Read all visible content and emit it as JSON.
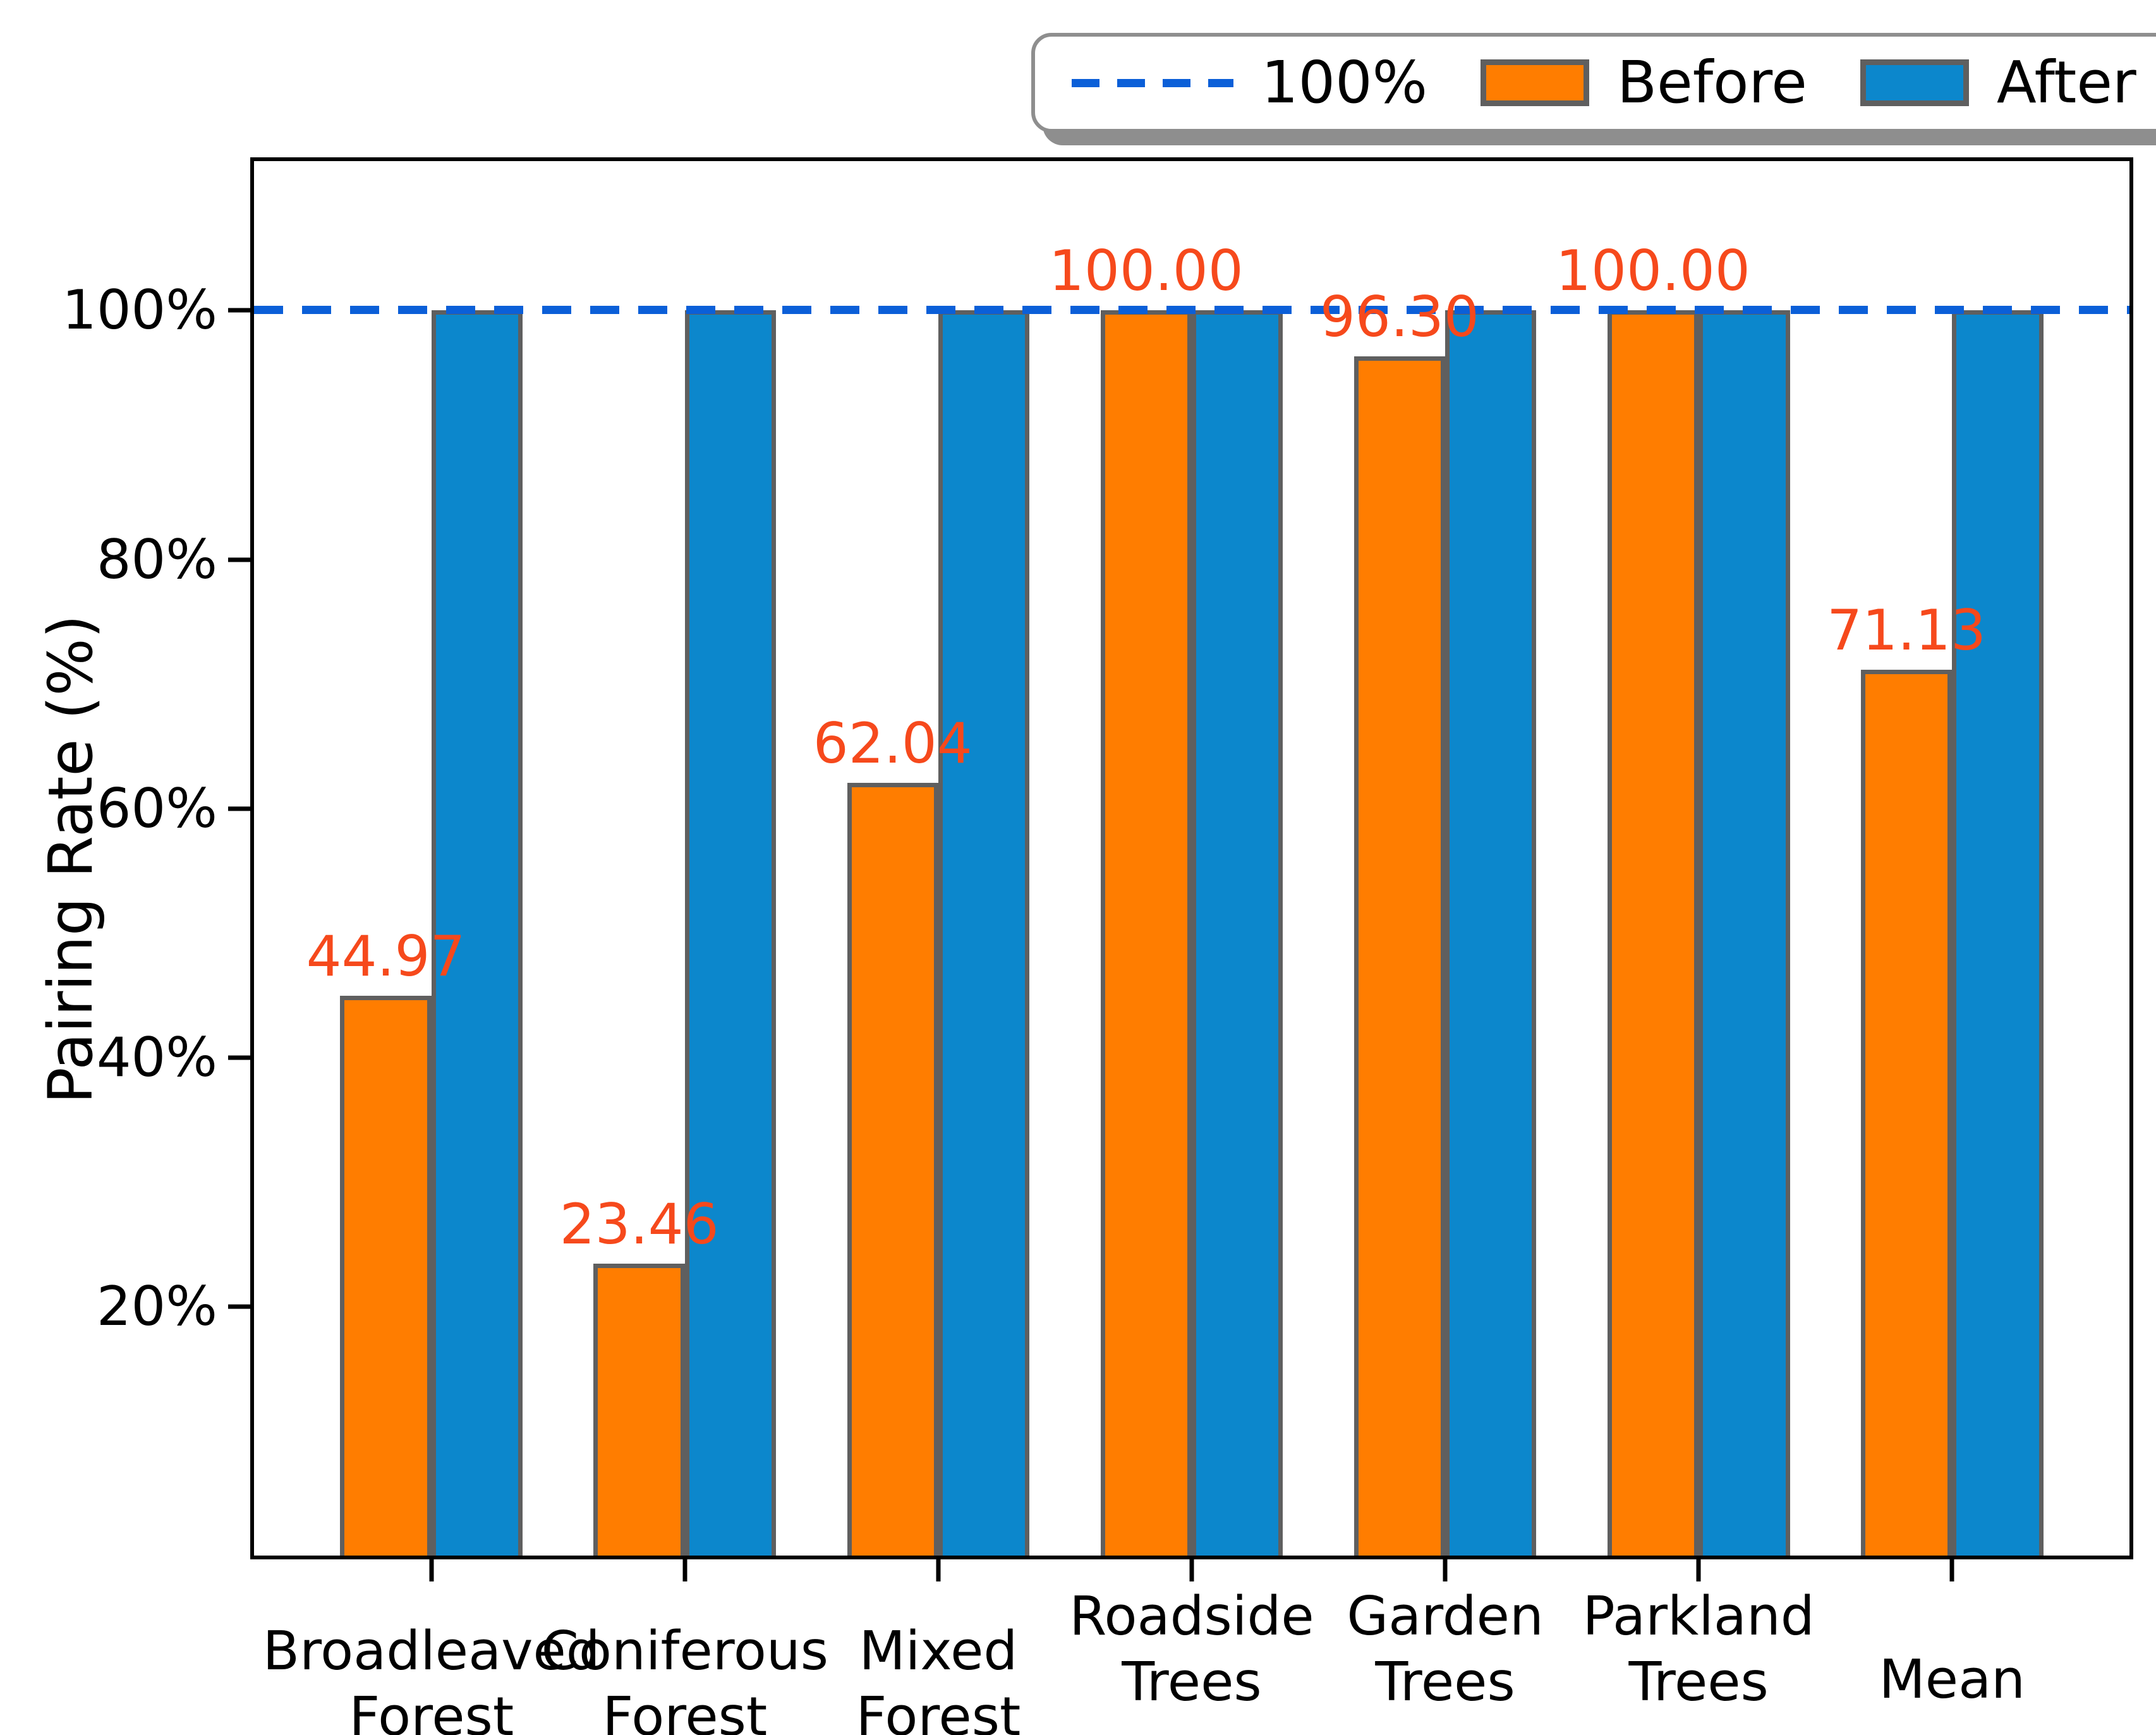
{
  "figure": {
    "background": "#ffffff",
    "axes_color": "#000000"
  },
  "chart_data": {
    "type": "bar",
    "title": "",
    "xlabel": "",
    "ylabel": "Pairing Rate (%)",
    "ylim": [
      0,
      112
    ],
    "grid": false,
    "yticks": [
      {
        "value": 20,
        "label": "20%"
      },
      {
        "value": 40,
        "label": "40%"
      },
      {
        "value": 60,
        "label": "60%"
      },
      {
        "value": 80,
        "label": "80%"
      },
      {
        "value": 100,
        "label": "100%"
      }
    ],
    "categories": [
      {
        "lines": [
          "Broadleaved",
          "Forest"
        ]
      },
      {
        "lines": [
          "Coniferous",
          "Forest"
        ]
      },
      {
        "lines": [
          "Mixed",
          "Forest"
        ]
      },
      {
        "lines": [
          "Roadside",
          "Trees"
        ]
      },
      {
        "lines": [
          "Garden",
          "Trees"
        ]
      },
      {
        "lines": [
          "Parkland",
          "Trees"
        ]
      },
      {
        "lines": [
          "Mean"
        ]
      }
    ],
    "series": [
      {
        "name": "Before",
        "color": "#FF7D00",
        "edge_color": "#5f5f5f",
        "values": [
          44.97,
          23.46,
          62.04,
          100.0,
          96.3,
          100.0,
          71.13
        ],
        "value_labels": [
          "44.97",
          "23.46",
          "62.04",
          "100.00",
          "96.30",
          "100.00",
          "71.13"
        ],
        "show_value_labels": true,
        "value_label_color": "#F6491C"
      },
      {
        "name": "After",
        "color": "#0C87CC",
        "edge_color": "#5f5f5f",
        "values": [
          100,
          100,
          100,
          100,
          100,
          100,
          100
        ],
        "value_labels": [],
        "show_value_labels": false
      }
    ],
    "reference_line": {
      "value": 100,
      "label": "100%",
      "color": "#0B5FD8",
      "style": "dashed"
    },
    "legend": {
      "position": "top-right",
      "items": [
        {
          "label": "100%",
          "marker": "dashed-line",
          "color": "#0B5FD8"
        },
        {
          "label": "Before",
          "marker": "square",
          "color": "#FF7D00"
        },
        {
          "label": "After",
          "marker": "square",
          "color": "#0C87CC"
        }
      ]
    }
  }
}
